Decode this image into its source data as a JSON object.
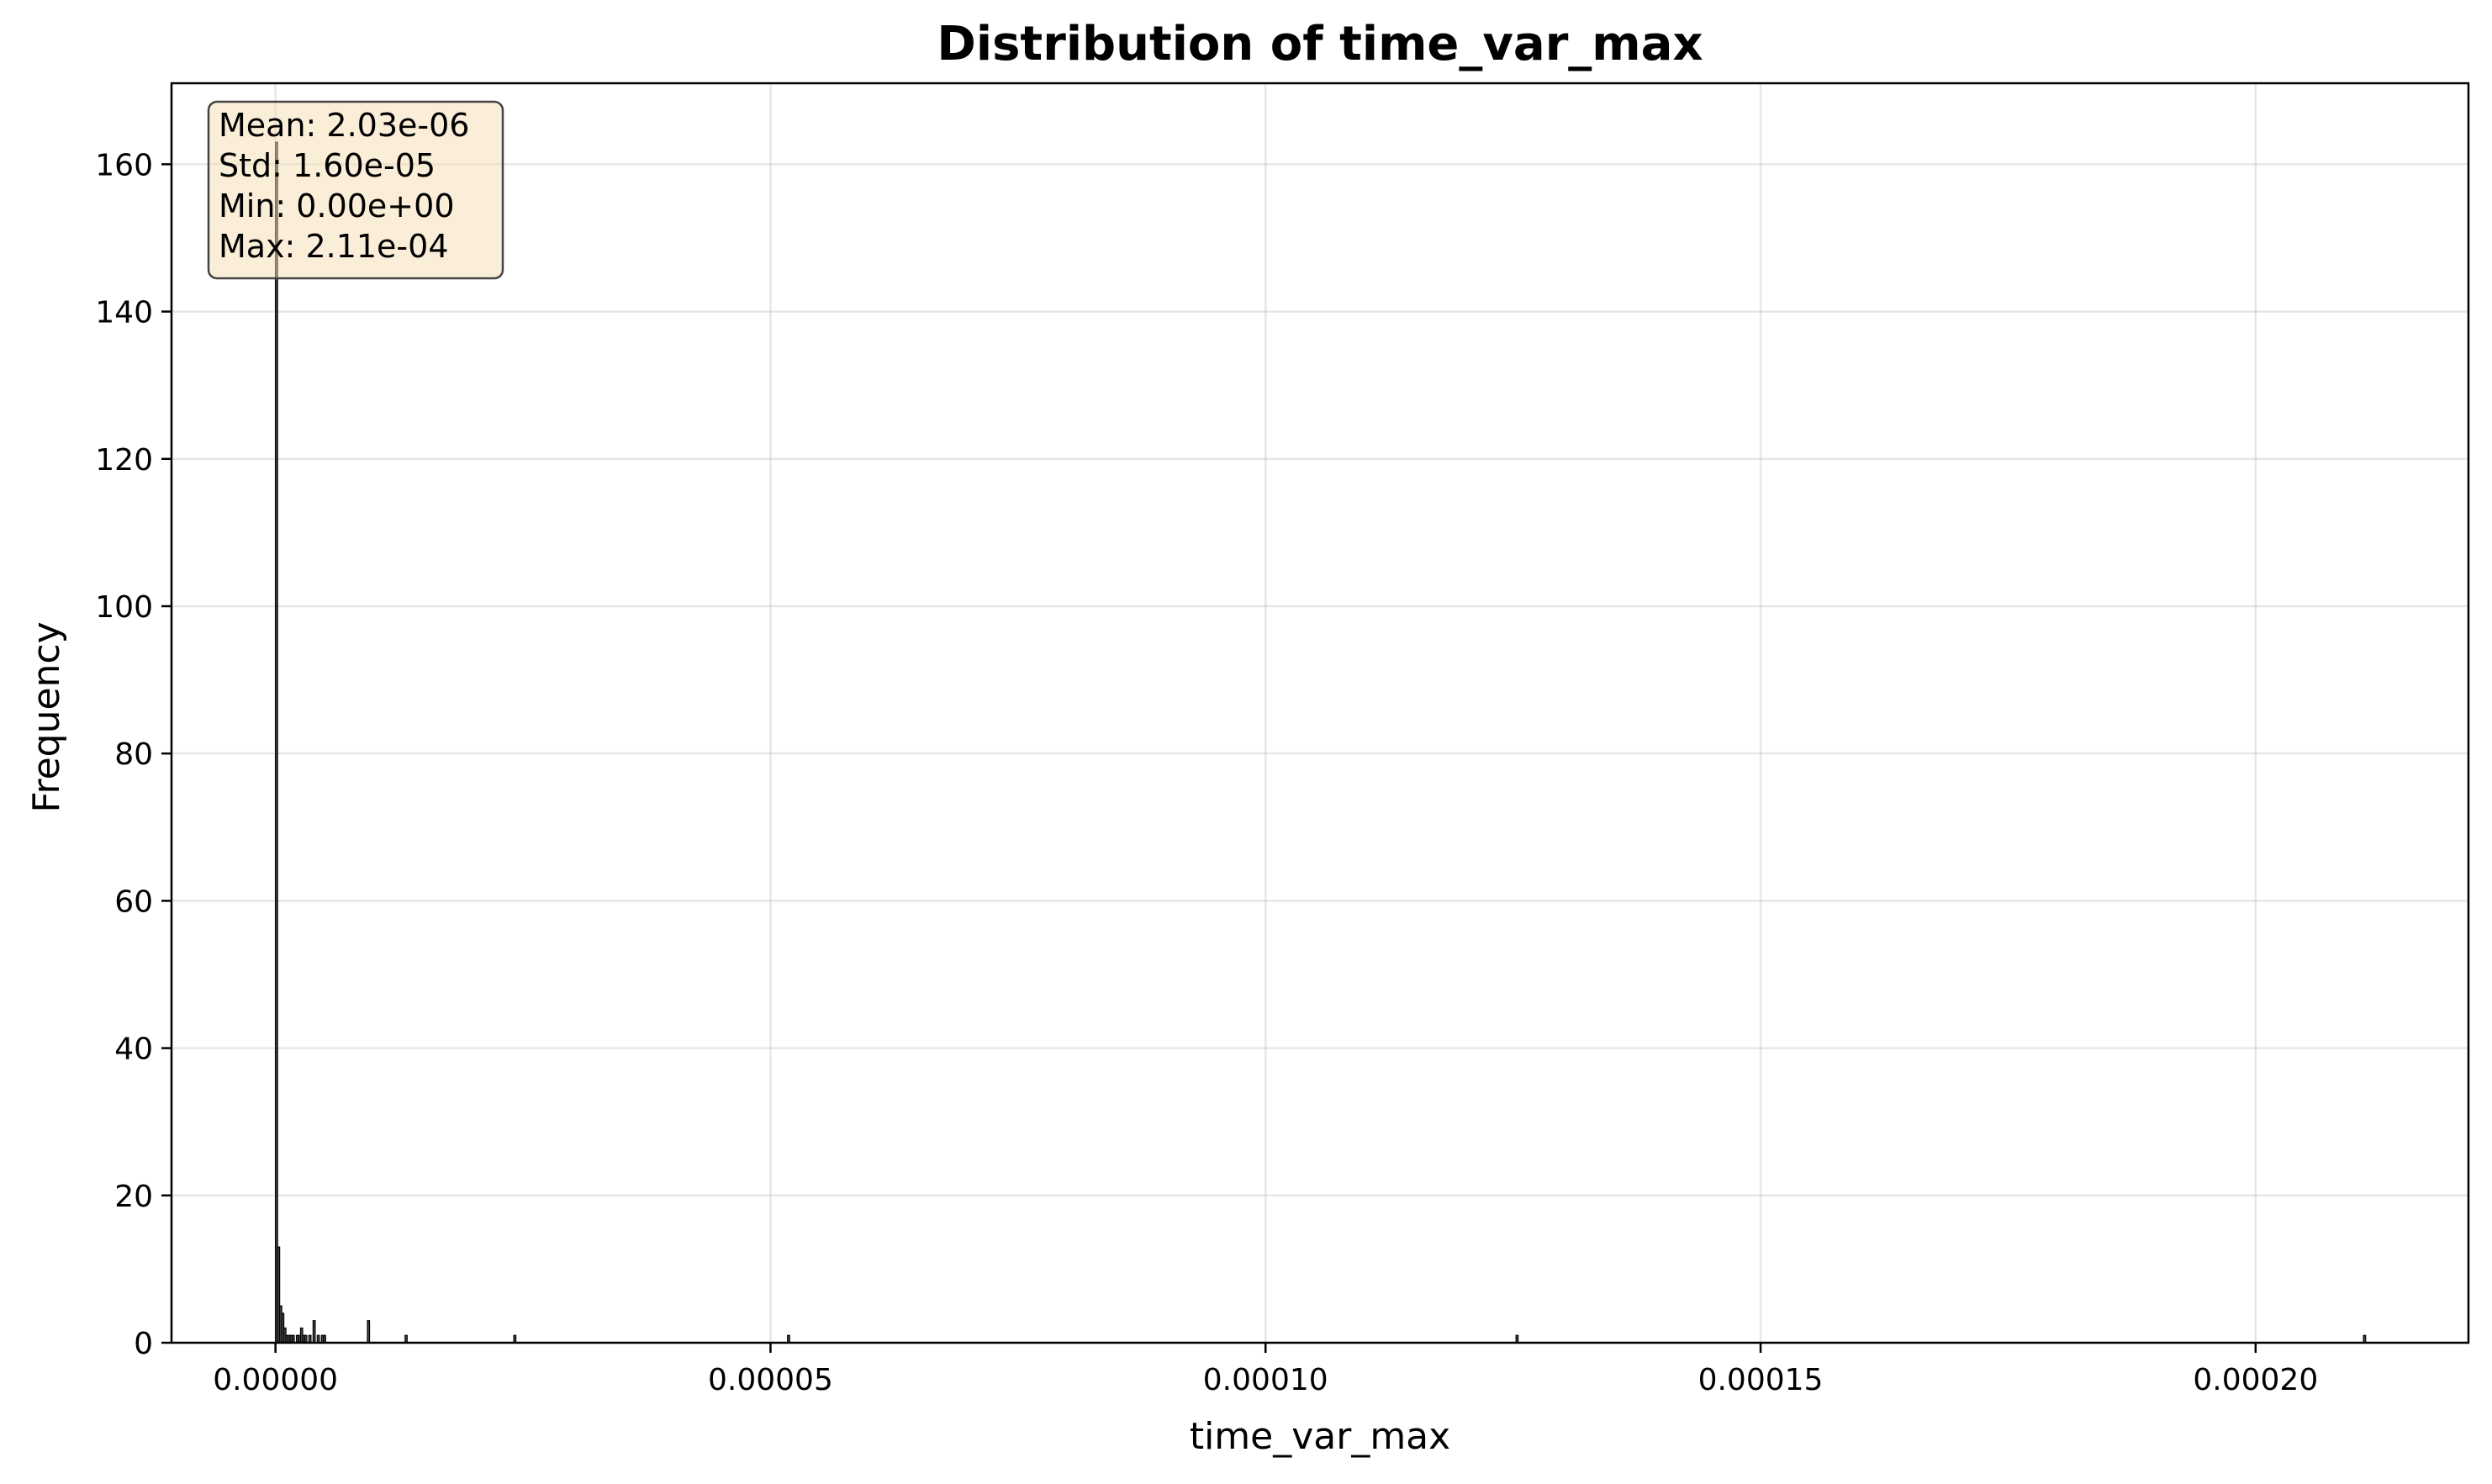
{
  "chart_data": {
    "type": "bar",
    "title": "Distribution of time_var_max",
    "xlabel": "time_var_max",
    "ylabel": "Frequency",
    "xlim": [
      -1.05e-05,
      0.0002215
    ],
    "ylim": [
      0,
      171
    ],
    "x_ticks": [
      {
        "value": 0.0,
        "label": "0.00000"
      },
      {
        "value": 5e-05,
        "label": "0.00005"
      },
      {
        "value": 0.0001,
        "label": "0.00010"
      },
      {
        "value": 0.00015,
        "label": "0.00015"
      },
      {
        "value": 0.0002,
        "label": "0.00020"
      }
    ],
    "y_ticks": [
      {
        "value": 0,
        "label": "0"
      },
      {
        "value": 20,
        "label": "20"
      },
      {
        "value": 40,
        "label": "40"
      },
      {
        "value": 60,
        "label": "60"
      },
      {
        "value": 80,
        "label": "80"
      },
      {
        "value": 100,
        "label": "100"
      },
      {
        "value": 120,
        "label": "120"
      },
      {
        "value": 140,
        "label": "140"
      },
      {
        "value": 160,
        "label": "160"
      }
    ],
    "grid": true,
    "bin_width": 2.11e-07,
    "bins": [
      {
        "x": 0.0,
        "count": 163
      },
      {
        "x": 2.11e-07,
        "count": 13
      },
      {
        "x": 4.22e-07,
        "count": 5
      },
      {
        "x": 6.33e-07,
        "count": 4
      },
      {
        "x": 8.44e-07,
        "count": 2
      },
      {
        "x": 1.055e-06,
        "count": 1
      },
      {
        "x": 1.266e-06,
        "count": 1
      },
      {
        "x": 1.477e-06,
        "count": 1
      },
      {
        "x": 1.688e-06,
        "count": 1
      },
      {
        "x": 2.111e-06,
        "count": 1
      },
      {
        "x": 2.322e-06,
        "count": 1
      },
      {
        "x": 2.533e-06,
        "count": 2
      },
      {
        "x": 2.744e-06,
        "count": 1
      },
      {
        "x": 2.955e-06,
        "count": 1
      },
      {
        "x": 3.377e-06,
        "count": 1
      },
      {
        "x": 3.799e-06,
        "count": 3
      },
      {
        "x": 4.221e-06,
        "count": 1
      },
      {
        "x": 4.643e-06,
        "count": 1
      },
      {
        "x": 4.854e-06,
        "count": 1
      },
      {
        "x": 9.29e-06,
        "count": 3
      },
      {
        "x": 1.309e-05,
        "count": 1
      },
      {
        "x": 2.407e-05,
        "count": 1
      },
      {
        "x": 5.172e-05,
        "count": 1
      },
      {
        "x": 0.0001253,
        "count": 1
      },
      {
        "x": 0.0002109,
        "count": 1
      }
    ]
  },
  "stats_box": {
    "lines": [
      "Mean: 2.03e-06",
      "Std: 1.60e-05",
      "Min: 0.00e+00",
      "Max: 2.11e-04"
    ],
    "background": "#f5deb3",
    "border": "#444444"
  }
}
